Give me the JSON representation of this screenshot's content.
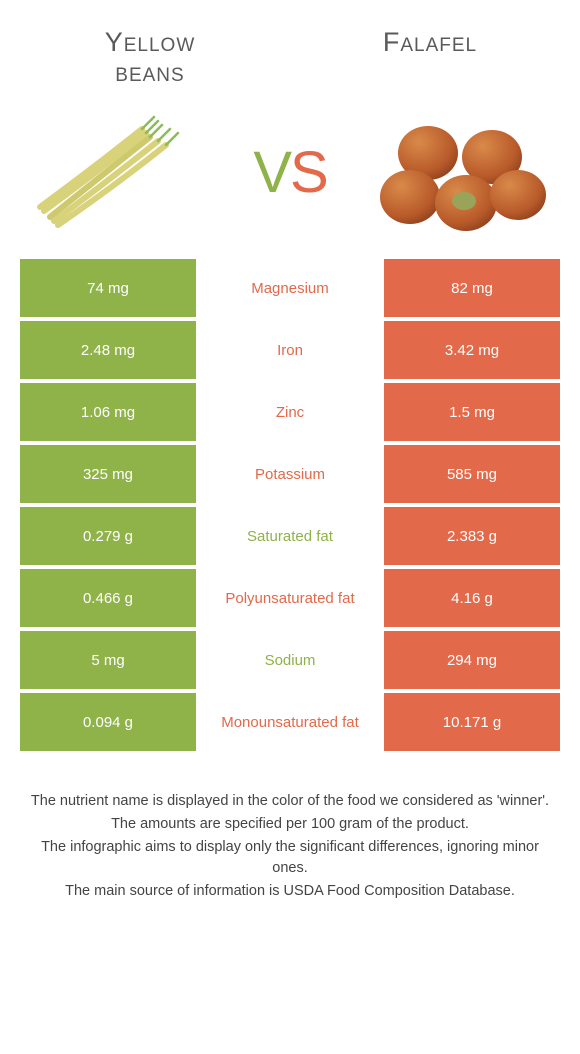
{
  "colors": {
    "green": "#8fb249",
    "orange": "#e2694a",
    "text": "#444444",
    "white": "#ffffff"
  },
  "title_left_line1": "Yellow",
  "title_left_line2": "beans",
  "title_right": "Falafel",
  "vs_v": "V",
  "vs_s": "S",
  "rows": [
    {
      "left": "74 mg",
      "mid": "Magnesium",
      "right": "82 mg",
      "winner": "orange"
    },
    {
      "left": "2.48 mg",
      "mid": "Iron",
      "right": "3.42 mg",
      "winner": "orange"
    },
    {
      "left": "1.06 mg",
      "mid": "Zinc",
      "right": "1.5 mg",
      "winner": "orange"
    },
    {
      "left": "325 mg",
      "mid": "Potassium",
      "right": "585 mg",
      "winner": "orange"
    },
    {
      "left": "0.279 g",
      "mid": "Saturated fat",
      "right": "2.383 g",
      "winner": "green"
    },
    {
      "left": "0.466 g",
      "mid": "Polyunsaturated fat",
      "right": "4.16 g",
      "winner": "orange"
    },
    {
      "left": "5 mg",
      "mid": "Sodium",
      "right": "294 mg",
      "winner": "green"
    },
    {
      "left": "0.094 g",
      "mid": "Monounsaturated fat",
      "right": "10.171 g",
      "winner": "orange"
    }
  ],
  "footnotes": [
    "The nutrient name is displayed in the color of the food we considered as 'winner'.",
    "The amounts are specified per 100 gram of the product.",
    "The infographic aims to display only the significant differences, ignoring minor ones.",
    "The main source of information is USDA Food Composition Database."
  ]
}
